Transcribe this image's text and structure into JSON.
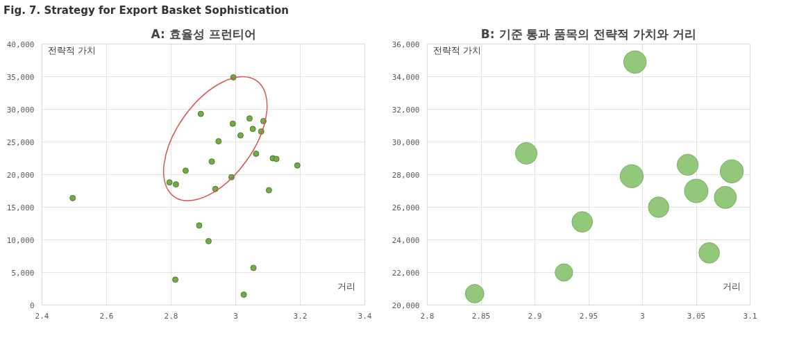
{
  "chart_data": [
    {
      "type": "scatter",
      "title": "A: 효율성 프런티어",
      "xlabel": "거리",
      "ylabel": "전략적 가치",
      "annotations": [
        "Fig. 7. Strategy for Export Basket Sophistication"
      ],
      "x": [
        2.495,
        2.795,
        2.815,
        2.845,
        2.892,
        2.887,
        2.916,
        2.813,
        2.926,
        2.937,
        2.947,
        2.987,
        2.991,
        2.993,
        3.015,
        3.025,
        3.043,
        3.053,
        3.055,
        3.063,
        3.079,
        3.086,
        3.103,
        3.115,
        3.126,
        3.191
      ],
      "series": [
        {
          "color": "#70ad47",
          "values": [
            16400,
            18800,
            18500,
            20600,
            29300,
            12200,
            9800,
            3900,
            22000,
            17800,
            25100,
            19600,
            27800,
            34900,
            26000,
            1600,
            28600,
            27000,
            5700,
            23200,
            26600,
            28200,
            17600,
            22500,
            22400,
            21400
          ]
        }
      ],
      "xlim": [
        2.4,
        3.4
      ],
      "xticks": [
        2.4,
        2.6,
        2.8,
        3,
        3.2,
        3.4
      ],
      "ylim": [
        0,
        40000
      ],
      "yticks": [
        0,
        {
          "value": 5000,
          "label": "5,000"
        },
        {
          "value": 10000,
          "label": "10,000"
        },
        {
          "value": 15000,
          "label": "15,000"
        },
        {
          "value": 20000,
          "label": "20,000"
        },
        {
          "value": 25000,
          "label": "25,000"
        },
        {
          "value": 30000,
          "label": "30,000"
        },
        {
          "value": 35000,
          "label": "35,000"
        },
        {
          "value": 40000,
          "label": "40,000"
        }
      ],
      "grid": true,
      "marker": "circle"
    },
    {
      "type": "bubble",
      "title": "B: 기준 통과 품목의 전략적 가치와 거리",
      "xlabel": "거리",
      "ylabel": "전략적 가치",
      "x": [
        2.993,
        2.892,
        2.99,
        3.042,
        3.083,
        3.05,
        3.077,
        3.015,
        2.944,
        3.062,
        2.927,
        2.844
      ],
      "series": [
        {
          "color": "#92c87a",
          "values": [
            34900,
            29300,
            27900,
            28600,
            28200,
            27000,
            26600,
            26000,
            25100,
            23200,
            22000,
            20700
          ],
          "sizes": [
            0.92,
            0.84,
            0.96,
            0.8,
            0.96,
            1,
            0.88,
            0.76,
            0.76,
            0.76,
            0.55,
            0.62
          ]
        }
      ],
      "xlim": [
        2.8,
        3.1
      ],
      "xticks": [
        2.8,
        2.85,
        2.9,
        2.95,
        3,
        3.05,
        3.1
      ],
      "ylim": [
        20000,
        36000
      ],
      "yticks": [
        {
          "value": 20000,
          "label": "20,000"
        },
        {
          "value": 22000,
          "label": "22,000"
        },
        {
          "value": 24000,
          "label": "24,000"
        },
        {
          "value": 26000,
          "label": "26,000"
        },
        {
          "value": 28000,
          "label": "28,000"
        },
        {
          "value": 30000,
          "label": "30,000"
        },
        {
          "value": 32000,
          "label": "32,000"
        },
        {
          "value": 34000,
          "label": "34,000"
        },
        {
          "value": 36000,
          "label": "36,000"
        }
      ],
      "grid": true,
      "marker": "circle"
    }
  ]
}
